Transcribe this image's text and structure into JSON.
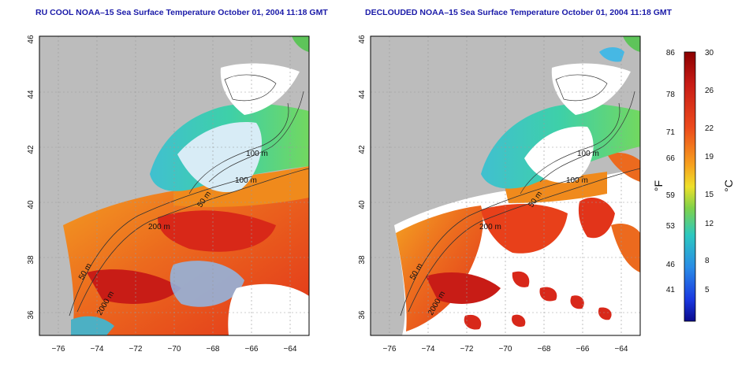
{
  "titles": {
    "left": "RU COOL NOAA–15 Sea Surface Temperature October 01, 2004 11:18 GMT",
    "right": "DECLOUDED NOAA–15 Sea Surface Temperature October 01, 2004 11:18 GMT"
  },
  "axes": {
    "lat_ticks": [
      "46",
      "44",
      "42",
      "40",
      "38",
      "36"
    ],
    "lon_ticks": [
      "−76",
      "−74",
      "−72",
      "−70",
      "−68",
      "−66",
      "−64"
    ]
  },
  "contour_labels": {
    "c100a": "100 m",
    "c100b": "100 m",
    "c50a": "50 m",
    "c200": "200 m",
    "c50b": "50 m",
    "c2000": "2000 m"
  },
  "colorbar": {
    "unit_f": "°F",
    "unit_c": "°C",
    "fahrenheit_ticks": [
      "86",
      "78",
      "71",
      "66",
      "59",
      "53",
      "46",
      "41"
    ],
    "celsius_ticks": [
      "30",
      "26",
      "22",
      "19",
      "15",
      "12",
      "8",
      "5"
    ]
  },
  "colors": {
    "land": "#bcbcbc",
    "cloud": "#ffffff",
    "warm_water": "#e8401a",
    "hot_water": "#c81c16",
    "shelf_water": "#f08a1c",
    "cool_water": "#3ec8b8",
    "title": "#1a1aa8"
  }
}
